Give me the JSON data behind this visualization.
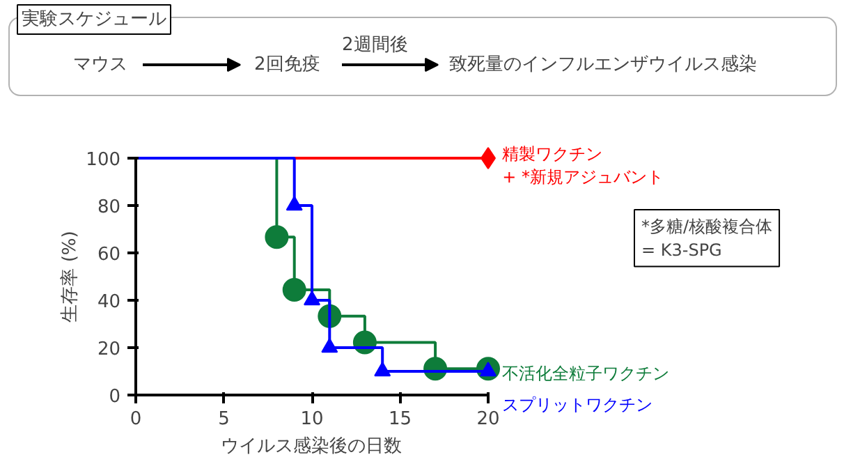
{
  "chart_data": {
    "type": "step",
    "series": [
      {
        "name": "精製ワクチン\n+ *新規アジュバント",
        "color": "#ff0000",
        "marker": "diamond",
        "x": [
          0,
          20
        ],
        "values": [
          100,
          100
        ]
      },
      {
        "name": "不活化全粒子ワクチン",
        "color": "#0e7c3a",
        "marker": "circle",
        "x": [
          0,
          8,
          9,
          11,
          13,
          17,
          20
        ],
        "values": [
          100,
          66.7,
          44.4,
          33.3,
          22.2,
          11.1,
          11.1
        ]
      },
      {
        "name": "スプリットワクチン",
        "color": "#0000ff",
        "marker": "triangle",
        "x": [
          0,
          9,
          10,
          11,
          14,
          20
        ],
        "values": [
          100,
          80,
          40,
          20,
          10,
          10
        ]
      }
    ],
    "xlabel": "ウイルス感染後の日数",
    "ylabel": "生存率 (%)",
    "xlim": [
      0,
      20
    ],
    "xticks": [
      0,
      5,
      10,
      15,
      20
    ],
    "ylim": [
      0,
      100
    ],
    "yticks": [
      0,
      20,
      40,
      60,
      80,
      100
    ],
    "grid": false,
    "annotations": [
      "実験スケジュール",
      "マウス",
      "2回免疫",
      "2週間後",
      "致死量のインフルエンザウイルス感染",
      "*多糖/核酸複合体\n= K3-SPG"
    ]
  }
}
